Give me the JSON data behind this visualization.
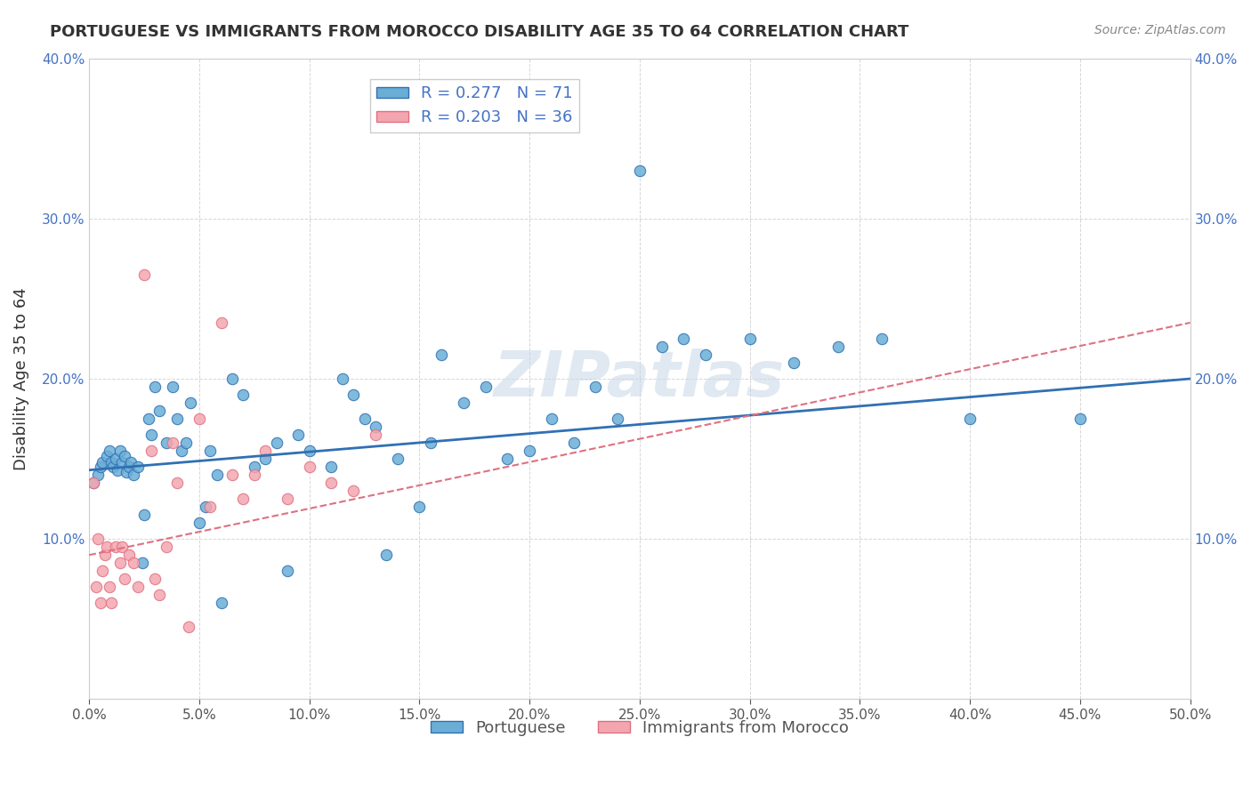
{
  "title": "PORTUGUESE VS IMMIGRANTS FROM MOROCCO DISABILITY AGE 35 TO 64 CORRELATION CHART",
  "source": "Source: ZipAtlas.com",
  "xlabel": "",
  "ylabel": "Disability Age 35 to 64",
  "xlim": [
    0.0,
    0.5
  ],
  "ylim": [
    0.0,
    0.4
  ],
  "xticks": [
    0.0,
    0.05,
    0.1,
    0.15,
    0.2,
    0.25,
    0.3,
    0.35,
    0.4,
    0.45,
    0.5
  ],
  "yticks": [
    0.0,
    0.1,
    0.2,
    0.3,
    0.4
  ],
  "xtick_labels": [
    "0.0%",
    "5.0%",
    "10.0%",
    "15.0%",
    "20.0%",
    "25.0%",
    "30.0%",
    "35.0%",
    "40.0%",
    "45.0%",
    "50.0%"
  ],
  "ytick_labels": [
    "",
    "10.0%",
    "20.0%",
    "30.0%",
    "40.0%"
  ],
  "legend_label1": "Portuguese",
  "legend_label2": "Immigrants from Morocco",
  "R1": 0.277,
  "N1": 71,
  "R2": 0.203,
  "N2": 36,
  "color_blue": "#6aaed6",
  "color_pink": "#f4a6b0",
  "line_blue": "#3070b3",
  "line_pink": "#e07080",
  "watermark": "ZIPatlas",
  "portuguese_x": [
    0.002,
    0.004,
    0.005,
    0.006,
    0.008,
    0.009,
    0.01,
    0.011,
    0.012,
    0.013,
    0.014,
    0.015,
    0.016,
    0.017,
    0.018,
    0.019,
    0.02,
    0.022,
    0.024,
    0.025,
    0.027,
    0.028,
    0.03,
    0.032,
    0.035,
    0.038,
    0.04,
    0.042,
    0.044,
    0.046,
    0.05,
    0.053,
    0.055,
    0.058,
    0.06,
    0.065,
    0.07,
    0.075,
    0.08,
    0.085,
    0.09,
    0.095,
    0.1,
    0.11,
    0.115,
    0.12,
    0.125,
    0.13,
    0.135,
    0.14,
    0.15,
    0.155,
    0.16,
    0.17,
    0.18,
    0.19,
    0.2,
    0.21,
    0.22,
    0.23,
    0.24,
    0.25,
    0.26,
    0.27,
    0.28,
    0.3,
    0.32,
    0.34,
    0.36,
    0.4,
    0.45
  ],
  "portuguese_y": [
    0.135,
    0.14,
    0.145,
    0.148,
    0.152,
    0.155,
    0.148,
    0.145,
    0.15,
    0.143,
    0.155,
    0.148,
    0.152,
    0.142,
    0.145,
    0.148,
    0.14,
    0.145,
    0.085,
    0.115,
    0.175,
    0.165,
    0.195,
    0.18,
    0.16,
    0.195,
    0.175,
    0.155,
    0.16,
    0.185,
    0.11,
    0.12,
    0.155,
    0.14,
    0.06,
    0.2,
    0.19,
    0.145,
    0.15,
    0.16,
    0.08,
    0.165,
    0.155,
    0.145,
    0.2,
    0.19,
    0.175,
    0.17,
    0.09,
    0.15,
    0.12,
    0.16,
    0.215,
    0.185,
    0.195,
    0.15,
    0.155,
    0.175,
    0.16,
    0.195,
    0.175,
    0.33,
    0.22,
    0.225,
    0.215,
    0.225,
    0.21,
    0.22,
    0.225,
    0.175,
    0.175
  ],
  "morocco_x": [
    0.002,
    0.003,
    0.004,
    0.005,
    0.006,
    0.007,
    0.008,
    0.009,
    0.01,
    0.012,
    0.014,
    0.015,
    0.016,
    0.018,
    0.02,
    0.022,
    0.025,
    0.028,
    0.03,
    0.032,
    0.035,
    0.038,
    0.04,
    0.045,
    0.05,
    0.055,
    0.06,
    0.065,
    0.07,
    0.075,
    0.08,
    0.09,
    0.1,
    0.11,
    0.12,
    0.13
  ],
  "morocco_y": [
    0.135,
    0.07,
    0.1,
    0.06,
    0.08,
    0.09,
    0.095,
    0.07,
    0.06,
    0.095,
    0.085,
    0.095,
    0.075,
    0.09,
    0.085,
    0.07,
    0.265,
    0.155,
    0.075,
    0.065,
    0.095,
    0.16,
    0.135,
    0.045,
    0.175,
    0.12,
    0.235,
    0.14,
    0.125,
    0.14,
    0.155,
    0.125,
    0.145,
    0.135,
    0.13,
    0.165
  ]
}
